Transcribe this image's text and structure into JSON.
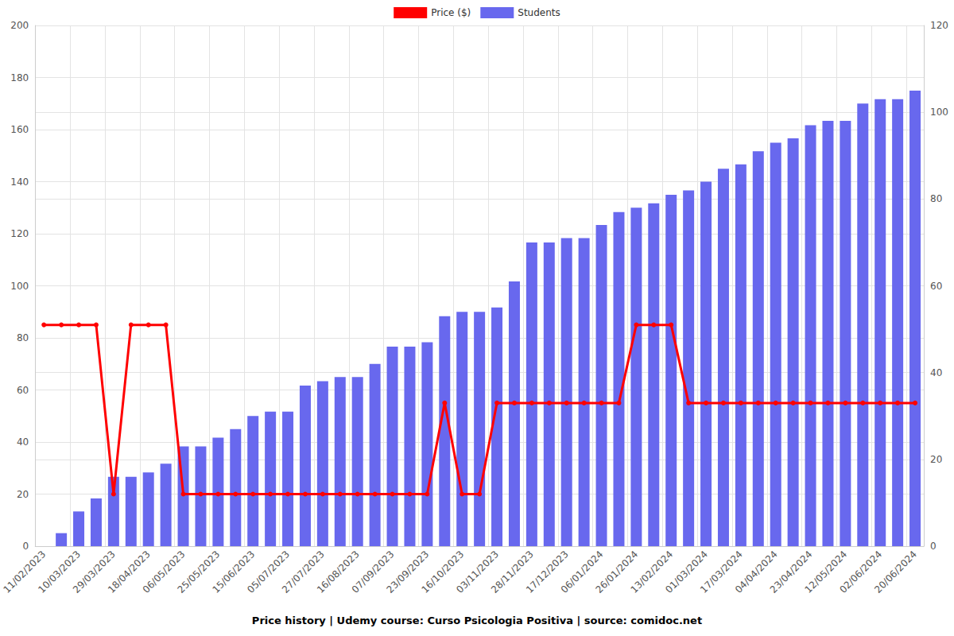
{
  "chart_data": {
    "type": "bar",
    "title": "Price history | Udemy course: Curso Psicologia Positiva | source: comidoc.net",
    "categories": [
      "11/02/2023",
      null,
      "10/03/2023",
      null,
      "29/03/2023",
      null,
      "18/04/2023",
      null,
      "06/05/2023",
      null,
      "25/05/2023",
      null,
      "15/06/2023",
      null,
      "05/07/2023",
      null,
      "27/07/2023",
      null,
      "16/08/2023",
      null,
      "07/09/2023",
      null,
      "23/09/2023",
      null,
      "16/10/2023",
      null,
      "03/11/2023",
      null,
      "28/11/2023",
      null,
      "17/12/2023",
      null,
      "06/01/2024",
      null,
      "26/01/2024",
      null,
      "13/02/2024",
      null,
      "01/03/2024",
      null,
      "17/03/2024",
      null,
      "04/04/2024",
      null,
      "23/04/2024",
      null,
      "12/05/2024",
      null,
      "02/06/2024",
      null,
      "20/06/2024"
    ],
    "series": [
      {
        "name": "Price ($)",
        "type": "line",
        "color": "#ff0000",
        "marker": "circle",
        "line_style": "solid",
        "values": [
          85,
          85,
          85,
          85,
          20,
          85,
          85,
          85,
          20,
          20,
          20,
          20,
          20,
          20,
          20,
          20,
          20,
          20,
          20,
          20,
          20,
          20,
          20,
          55,
          20,
          20,
          55,
          55,
          55,
          55,
          55,
          55,
          55,
          55,
          85,
          85,
          85,
          55,
          55,
          55,
          55,
          55,
          55,
          55,
          55,
          55,
          55,
          55,
          55,
          55,
          55
        ]
      },
      {
        "name": "Students",
        "type": "bar",
        "color": "#6868ee",
        "axis": "y2",
        "values": [
          null,
          3,
          8,
          11,
          16,
          16,
          17,
          19,
          23,
          23,
          25,
          27,
          30,
          31,
          31,
          37,
          38,
          39,
          39,
          42,
          46,
          46,
          47,
          53,
          54,
          54,
          55,
          61,
          70,
          70,
          71,
          71,
          74,
          77,
          78,
          79,
          81,
          82,
          84,
          87,
          88,
          91,
          93,
          94,
          97,
          98,
          98,
          102,
          103,
          103,
          105
        ]
      }
    ],
    "ylim": [
      0,
      200
    ],
    "yticks": [
      0,
      20,
      40,
      60,
      80,
      100,
      120,
      140,
      160,
      180,
      200
    ],
    "y2lim": [
      0,
      120
    ],
    "y2ticks": [
      0,
      20,
      40,
      60,
      80,
      100,
      120
    ],
    "grid": true,
    "legend": "top"
  }
}
